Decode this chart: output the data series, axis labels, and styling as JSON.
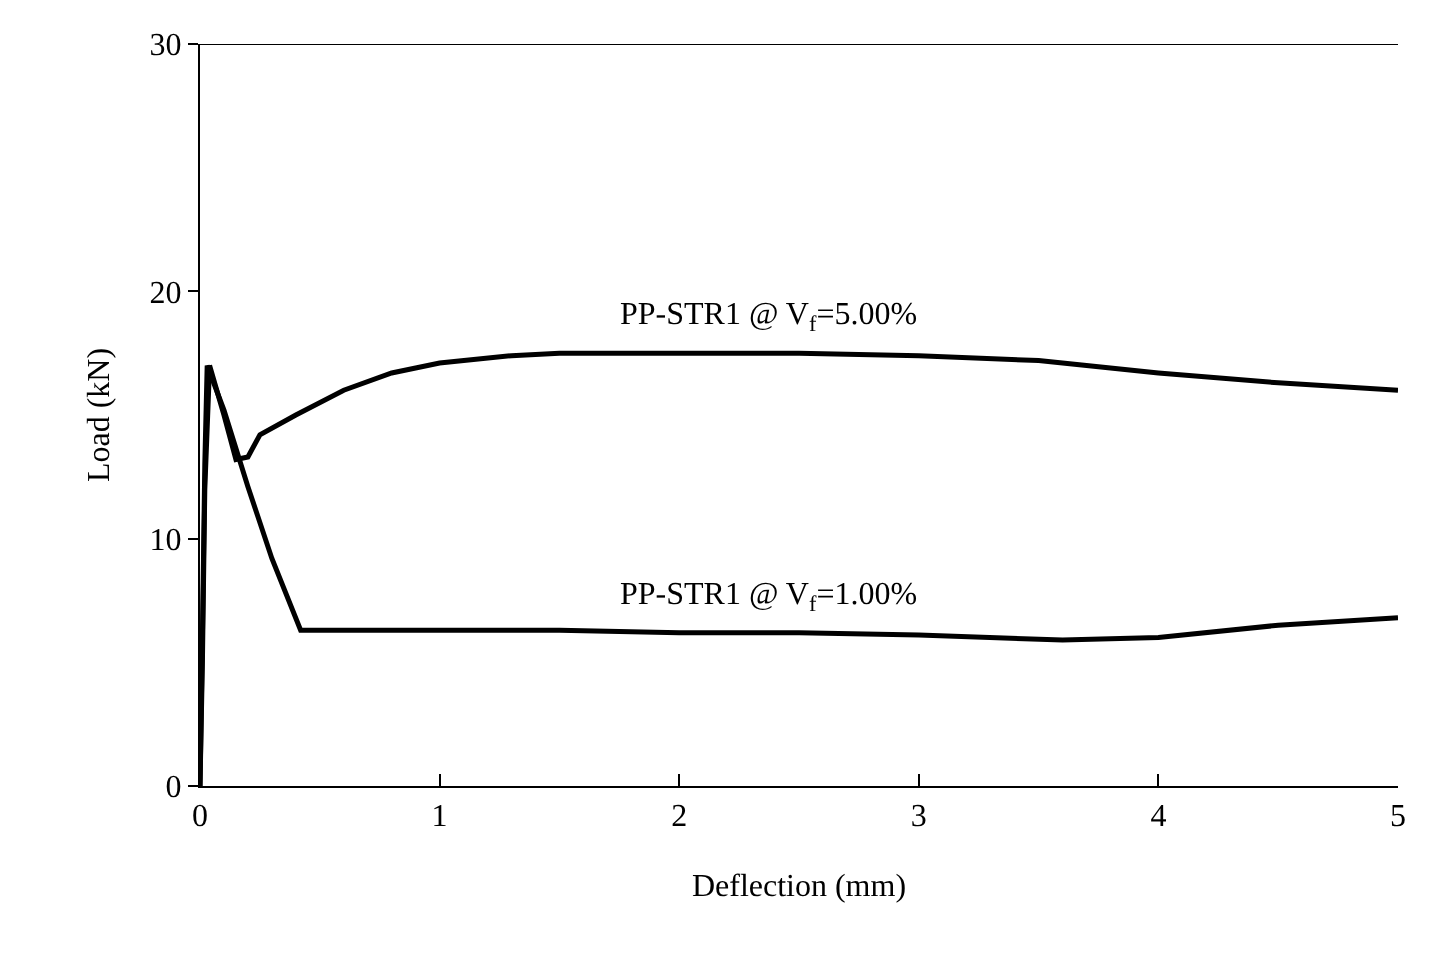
{
  "chart_data": {
    "type": "line",
    "xlabel": "Deflection (mm)",
    "ylabel": "Load (kN)",
    "xlim": [
      0,
      5
    ],
    "xticks": [
      0,
      1,
      2,
      3,
      4,
      5
    ],
    "ylim": [
      0,
      30
    ],
    "yticks": [
      0,
      10,
      20,
      30
    ],
    "line_style": "solid",
    "ref_lines": [
      {
        "axis": "y",
        "value": 30,
        "color": "#000000"
      }
    ],
    "series": [
      {
        "name": "PP-STR1 @ V$_{f}$=5.00%",
        "color": "#000000",
        "x": [
          0,
          0.01,
          0.02,
          0.04,
          0.1,
          0.15,
          0.2,
          0.25,
          0.4,
          0.6,
          0.8,
          1,
          1.3,
          1.5,
          2,
          2.5,
          3,
          3.5,
          4,
          4.5,
          5
        ],
        "values": [
          0,
          5,
          12,
          17,
          15,
          13.2,
          13.3,
          14.2,
          15,
          16,
          16.7,
          17.1,
          17.4,
          17.5,
          17.5,
          17.5,
          17.4,
          17.2,
          16.7,
          16.3,
          16
        ]
      },
      {
        "name": "PP-STR1 @ V$_{f}$=1.00%",
        "color": "#000000",
        "x": [
          0,
          0.01,
          0.02,
          0.03,
          0.1,
          0.2,
          0.3,
          0.42,
          1,
          1.5,
          2,
          2.5,
          3,
          3.6,
          4,
          4.5,
          5
        ],
        "values": [
          0,
          6,
          13,
          17,
          15.2,
          12.1,
          9.2,
          6.3,
          6.3,
          6.3,
          6.2,
          6.2,
          6.1,
          5.9,
          6.0,
          6.5,
          6.8
        ]
      }
    ]
  }
}
